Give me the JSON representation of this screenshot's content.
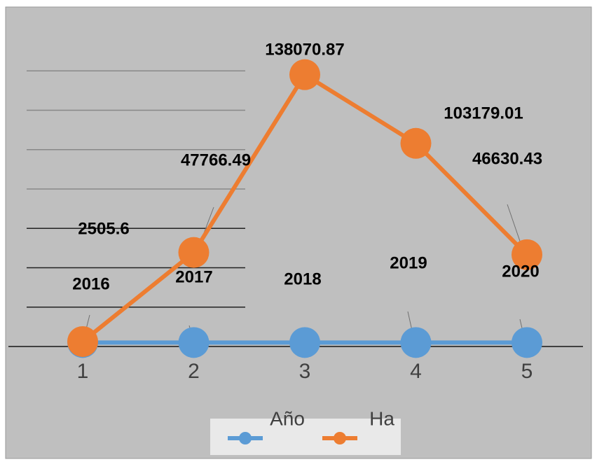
{
  "chart_data": {
    "type": "line",
    "categories": [
      "1",
      "2",
      "3",
      "4",
      "5"
    ],
    "series": [
      {
        "name": "Año",
        "color": "#5b9bd5",
        "values": [
          2016,
          2017,
          2018,
          2019,
          2020
        ]
      },
      {
        "name": "Ha",
        "color": "#ed7d31",
        "values": [
          2505.6,
          47766.49,
          138070.87,
          103179.01,
          46630.43
        ]
      }
    ],
    "ylim": [
      0,
      160000
    ],
    "yticks": [
      20000,
      40000,
      60000,
      80000,
      100000,
      120000,
      140000
    ],
    "grid": true,
    "legend": "bottom"
  }
}
